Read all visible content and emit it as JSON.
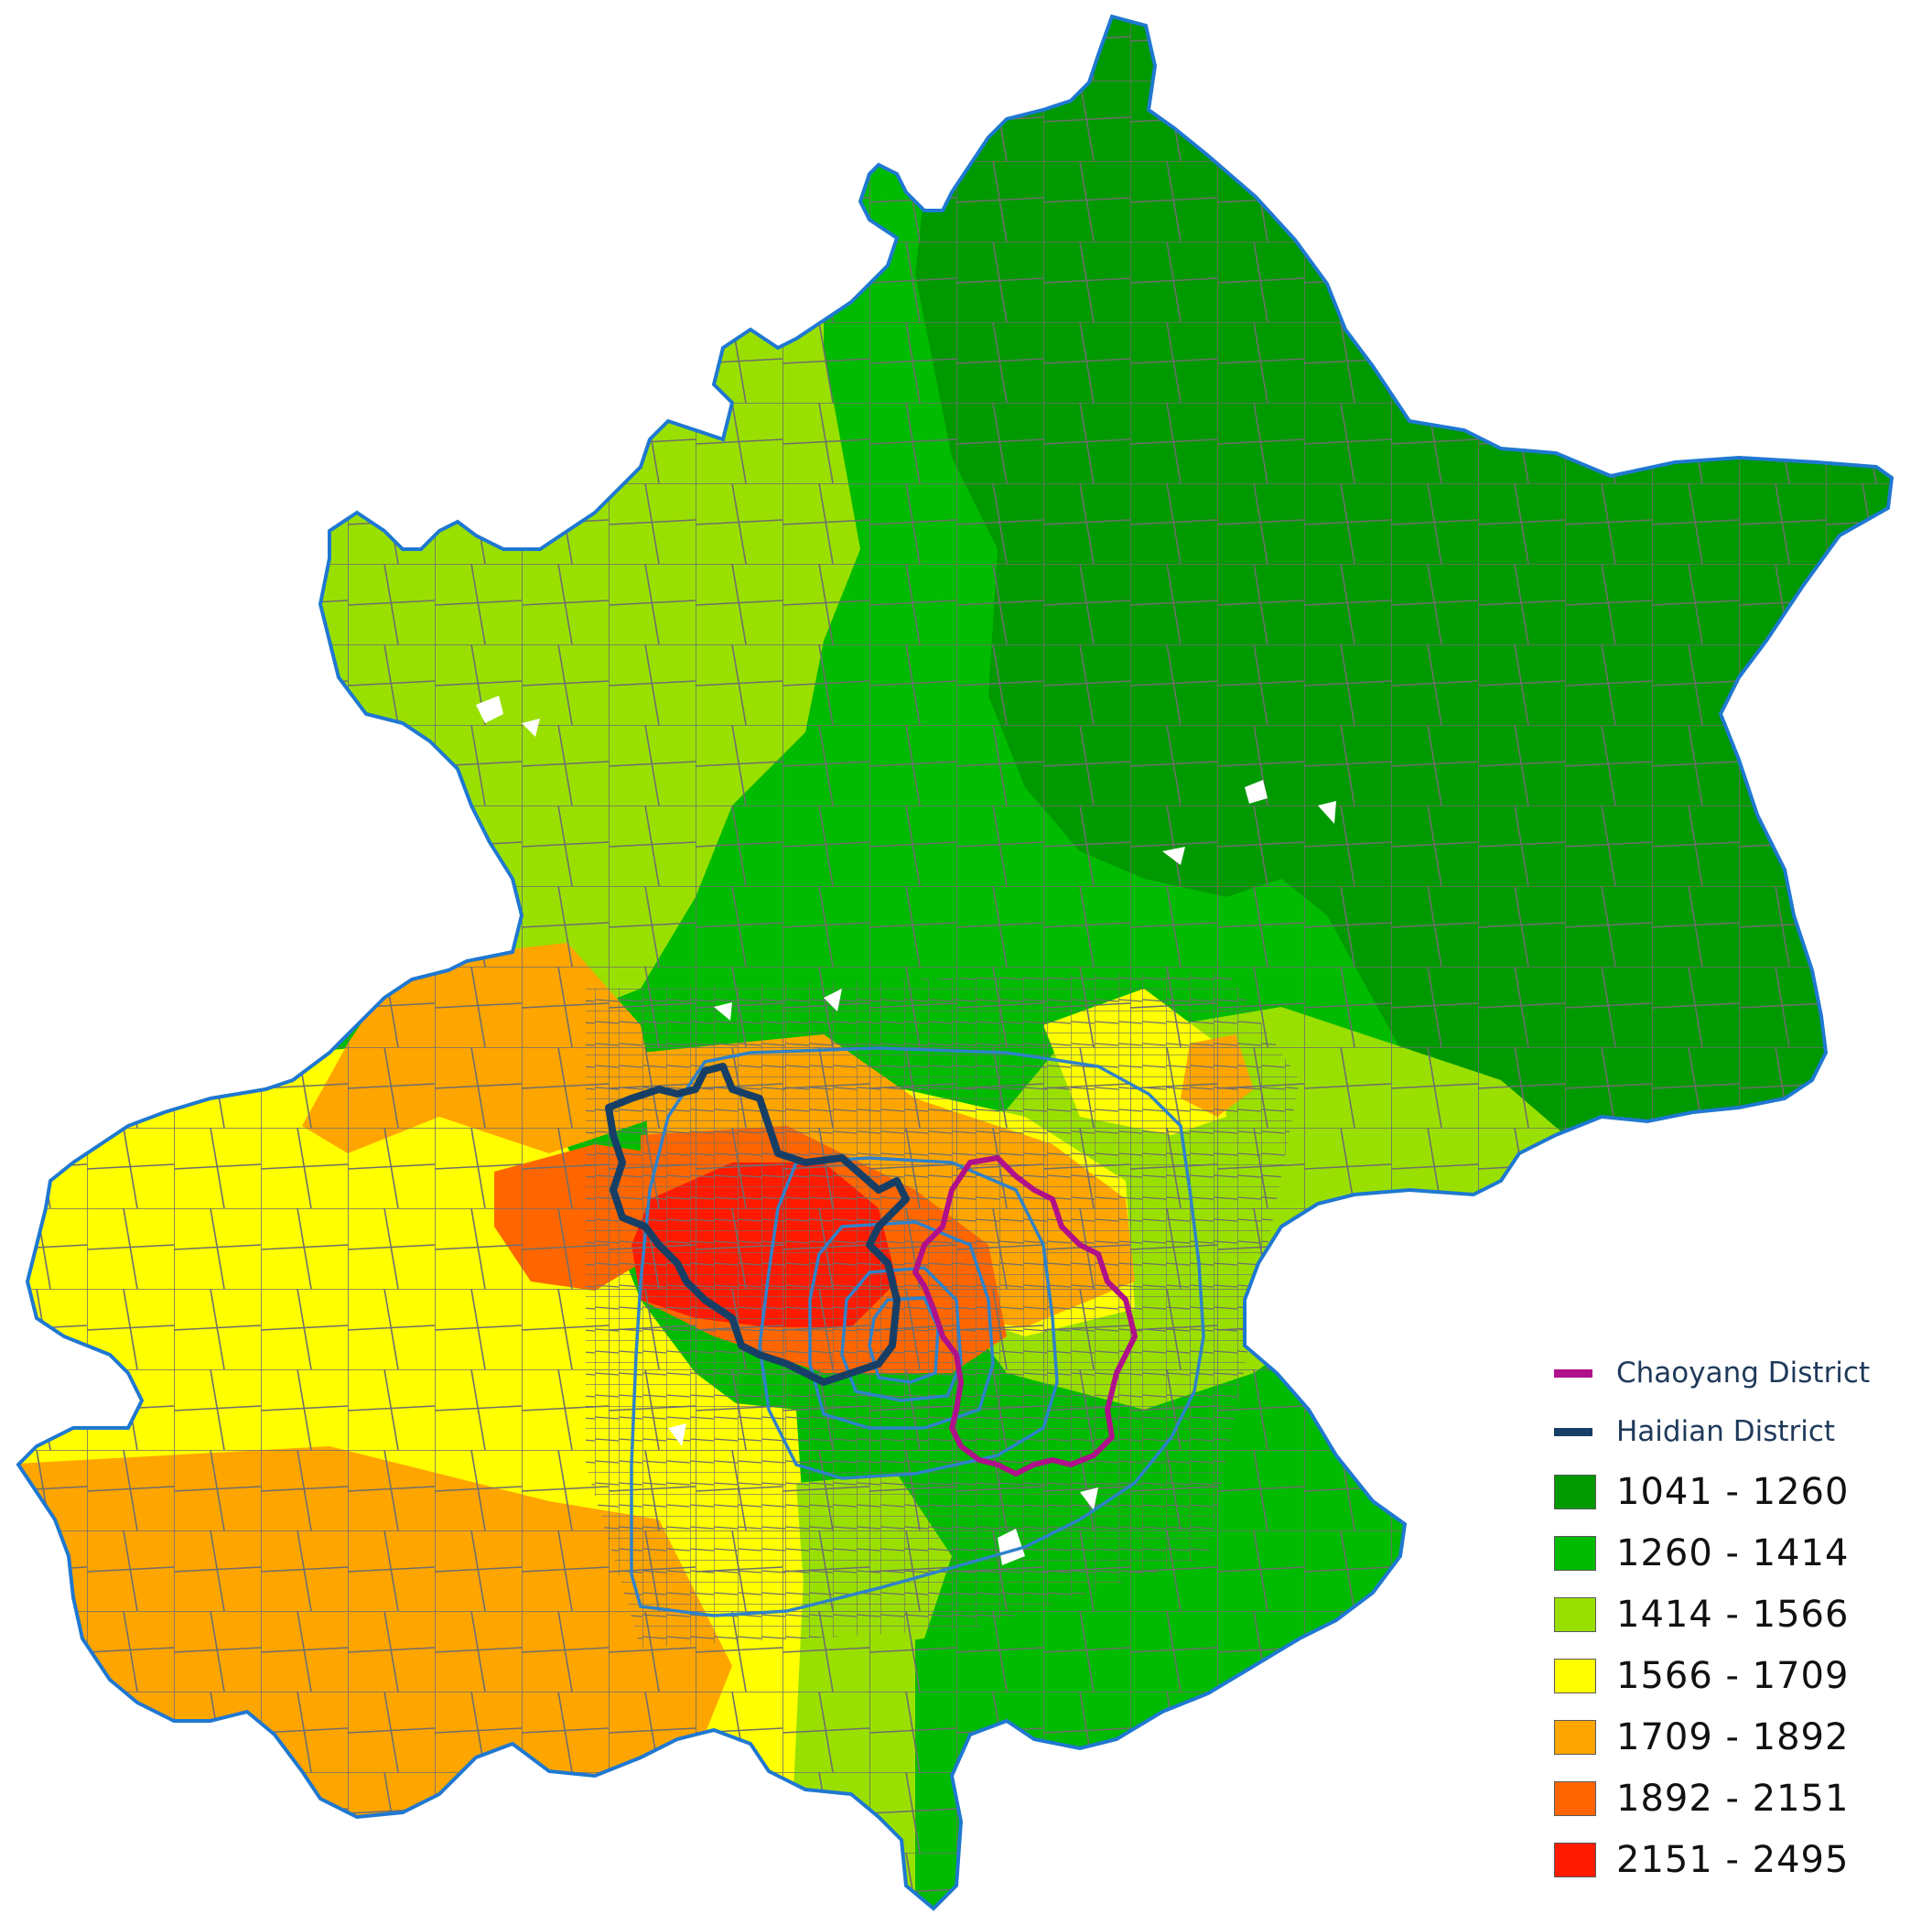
{
  "map": {
    "class_colors": {
      "c1": "#009900",
      "c2": "#00bb00",
      "c3": "#99e000",
      "c4": "#ffff00",
      "c5": "#ffa500",
      "c6": "#ff6600",
      "c7": "#ff1a00"
    },
    "boundary_color": "#1f78d1",
    "ring_road_color": "#2f82c9",
    "chaoyang_color": "#b0108a",
    "haidian_color": "#173f66",
    "gridline_color": "#6e6e6e"
  },
  "legend": {
    "districts": [
      {
        "label": "Chaoyang District",
        "color": "#b0108a"
      },
      {
        "label": "Haidian District",
        "color": "#173f66"
      }
    ],
    "classes": [
      {
        "label": "1041 - 1260",
        "color": "#009900"
      },
      {
        "label": "1260 - 1414",
        "color": "#00bb00"
      },
      {
        "label": "1414 - 1566",
        "color": "#99e000"
      },
      {
        "label": "1566 - 1709",
        "color": "#ffff00"
      },
      {
        "label": "1709 - 1892",
        "color": "#ffa500"
      },
      {
        "label": "1892 - 2151",
        "color": "#ff6600"
      },
      {
        "label": "2151 - 2495",
        "color": "#ff1a00"
      }
    ]
  }
}
